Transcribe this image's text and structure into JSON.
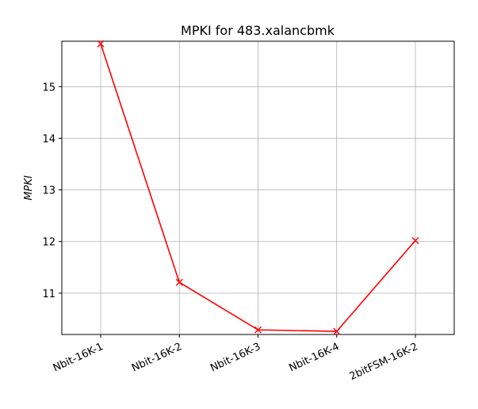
{
  "chart_data": {
    "type": "line",
    "title": "MPKI for 483.xalancbmk",
    "xlabel": "",
    "ylabel": "MPKI",
    "categories": [
      "Nbit-16K-1",
      "Nbit-16K-2",
      "Nbit-16K-3",
      "Nbit-16K-4",
      "2bitFSM-16K-2"
    ],
    "series": [
      {
        "values": [
          15.83,
          11.21,
          10.29,
          10.26,
          12.02
        ],
        "color": "#ff0000",
        "marker": "x"
      }
    ],
    "ylim": [
      10.2,
      15.88
    ],
    "yticks": [
      11,
      12,
      13,
      14,
      15
    ],
    "grid": true,
    "xtick_rotation": 25
  }
}
